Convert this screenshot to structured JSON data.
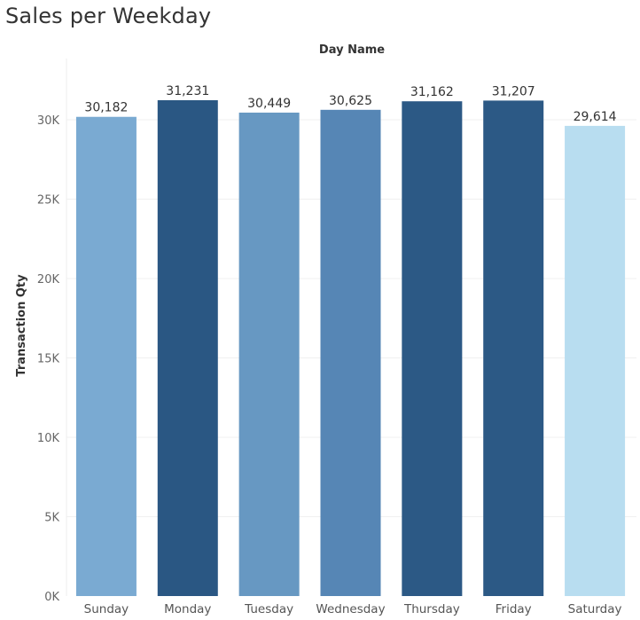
{
  "page": {
    "title": "Sales per Weekday"
  },
  "chart_data": {
    "type": "bar",
    "title": "Sales per Weekday",
    "xlabel": "Day Name",
    "ylabel": "Transaction Qty",
    "categories": [
      "Sunday",
      "Monday",
      "Tuesday",
      "Wednesday",
      "Thursday",
      "Friday",
      "Saturday"
    ],
    "values": [
      30182,
      31231,
      30449,
      30625,
      31162,
      31207,
      29614
    ],
    "value_labels": [
      "30,182",
      "31,231",
      "30,449",
      "30,625",
      "31,162",
      "31,207",
      "29,614"
    ],
    "colors": [
      "#7aaad2",
      "#2a5783",
      "#6798c2",
      "#5686b5",
      "#2c5985",
      "#2c5985",
      "#b8ddf0"
    ],
    "ylim": [
      0,
      33000
    ],
    "yticks": [
      0,
      5000,
      10000,
      15000,
      20000,
      25000,
      30000
    ],
    "ytick_labels": [
      "0K",
      "5K",
      "10K",
      "15K",
      "20K",
      "25K",
      "30K"
    ],
    "grid": true,
    "legend": "none"
  }
}
